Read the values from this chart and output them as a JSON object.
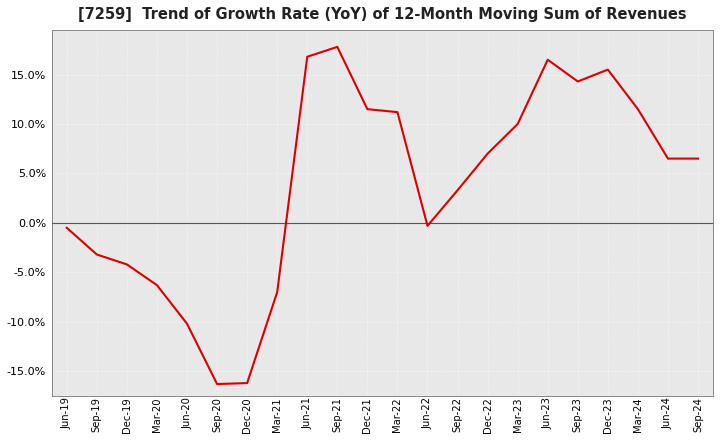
{
  "title": "[7259]  Trend of Growth Rate (YoY) of 12-Month Moving Sum of Revenues",
  "line_color": "#dd0000",
  "line_width": 1.5,
  "background_color": "#ffffff",
  "plot_bg_color": "#e8e8e8",
  "grid_color": "#ffffff",
  "zero_line_color": "#555555",
  "ylim": [
    -0.175,
    0.195
  ],
  "yticks": [
    -0.15,
    -0.1,
    -0.05,
    0.0,
    0.05,
    0.1,
    0.15
  ],
  "labels": [
    "Jun-19",
    "Sep-19",
    "Dec-19",
    "Mar-20",
    "Jun-20",
    "Sep-20",
    "Dec-20",
    "Mar-21",
    "Jun-21",
    "Sep-21",
    "Dec-21",
    "Mar-22",
    "Jun-22",
    "Sep-22",
    "Dec-22",
    "Mar-23",
    "Jun-23",
    "Sep-23",
    "Dec-23",
    "Mar-24",
    "Jun-24",
    "Sep-24"
  ],
  "values": [
    -0.005,
    -0.032,
    -0.042,
    -0.063,
    -0.102,
    -0.163,
    -0.162,
    -0.07,
    0.168,
    0.178,
    0.115,
    0.112,
    -0.003,
    0.033,
    0.07,
    0.1,
    0.165,
    0.143,
    0.155,
    0.115,
    0.065,
    0.065
  ]
}
